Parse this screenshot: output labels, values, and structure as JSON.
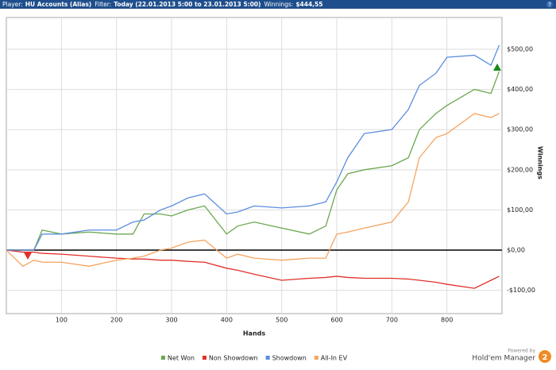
{
  "header": {
    "items": [
      {
        "label": "Player:",
        "value": "HU Accounts (Alias)"
      },
      {
        "label": "Filter:",
        "value": "Today (22.01.2013 5:00 to 23.01.2013 5:00)"
      },
      {
        "label": "Winnings:",
        "value": "$444,55"
      }
    ],
    "help": "?"
  },
  "branding": {
    "powered": "Powered by",
    "product": "Hold'em Manager",
    "version": "2"
  },
  "chart_data": {
    "type": "line",
    "x_label": "Hands",
    "y_label": "Winnings",
    "x": [
      0,
      30,
      50,
      65,
      100,
      150,
      200,
      230,
      250,
      280,
      300,
      330,
      360,
      400,
      420,
      450,
      500,
      550,
      580,
      600,
      620,
      650,
      700,
      730,
      750,
      780,
      800,
      850,
      880,
      895
    ],
    "series": [
      {
        "name": "Net Won",
        "color": "#6aa84f",
        "values": [
          0,
          0,
          0,
          50,
          40,
          45,
          40,
          40,
          90,
          90,
          85,
          100,
          110,
          40,
          60,
          70,
          55,
          40,
          60,
          150,
          190,
          200,
          210,
          230,
          300,
          340,
          360,
          400,
          390,
          445
        ]
      },
      {
        "name": "Non Showdown",
        "color": "#e0302a",
        "values": [
          0,
          -5,
          -5,
          -8,
          -10,
          -15,
          -20,
          -22,
          -22,
          -25,
          -25,
          -28,
          -30,
          -45,
          -50,
          -60,
          -75,
          -70,
          -68,
          -65,
          -68,
          -70,
          -70,
          -72,
          -75,
          -80,
          -85,
          -95,
          -75,
          -65
        ]
      },
      {
        "name": "Showdown",
        "color": "#5b8de0",
        "values": [
          0,
          0,
          0,
          40,
          40,
          50,
          50,
          70,
          75,
          100,
          110,
          130,
          140,
          90,
          95,
          110,
          105,
          110,
          120,
          170,
          230,
          290,
          300,
          350,
          410,
          440,
          480,
          485,
          460,
          510
        ]
      },
      {
        "name": "All-In EV",
        "color": "#f4a460",
        "values": [
          0,
          -40,
          -25,
          -30,
          -30,
          -40,
          -25,
          -20,
          -15,
          0,
          5,
          20,
          25,
          -20,
          -10,
          -20,
          -25,
          -20,
          -20,
          40,
          45,
          55,
          70,
          120,
          230,
          280,
          290,
          340,
          330,
          340
        ]
      }
    ],
    "xlim": [
      0,
      900
    ],
    "xticks": [
      100,
      200,
      300,
      400,
      500,
      600,
      700,
      800
    ],
    "ylim": [
      -158,
      579
    ],
    "yticks": [
      {
        "value": -100,
        "label": "-$100,00"
      },
      {
        "value": 0,
        "label": "$0,00"
      },
      {
        "value": 100,
        "label": "$100,00"
      },
      {
        "value": 200,
        "label": "$200,00"
      },
      {
        "value": 300,
        "label": "$300,00"
      },
      {
        "value": 400,
        "label": "$400,00"
      },
      {
        "value": 500,
        "label": "$500,00"
      }
    ],
    "grid": true,
    "legend": "bottom"
  }
}
